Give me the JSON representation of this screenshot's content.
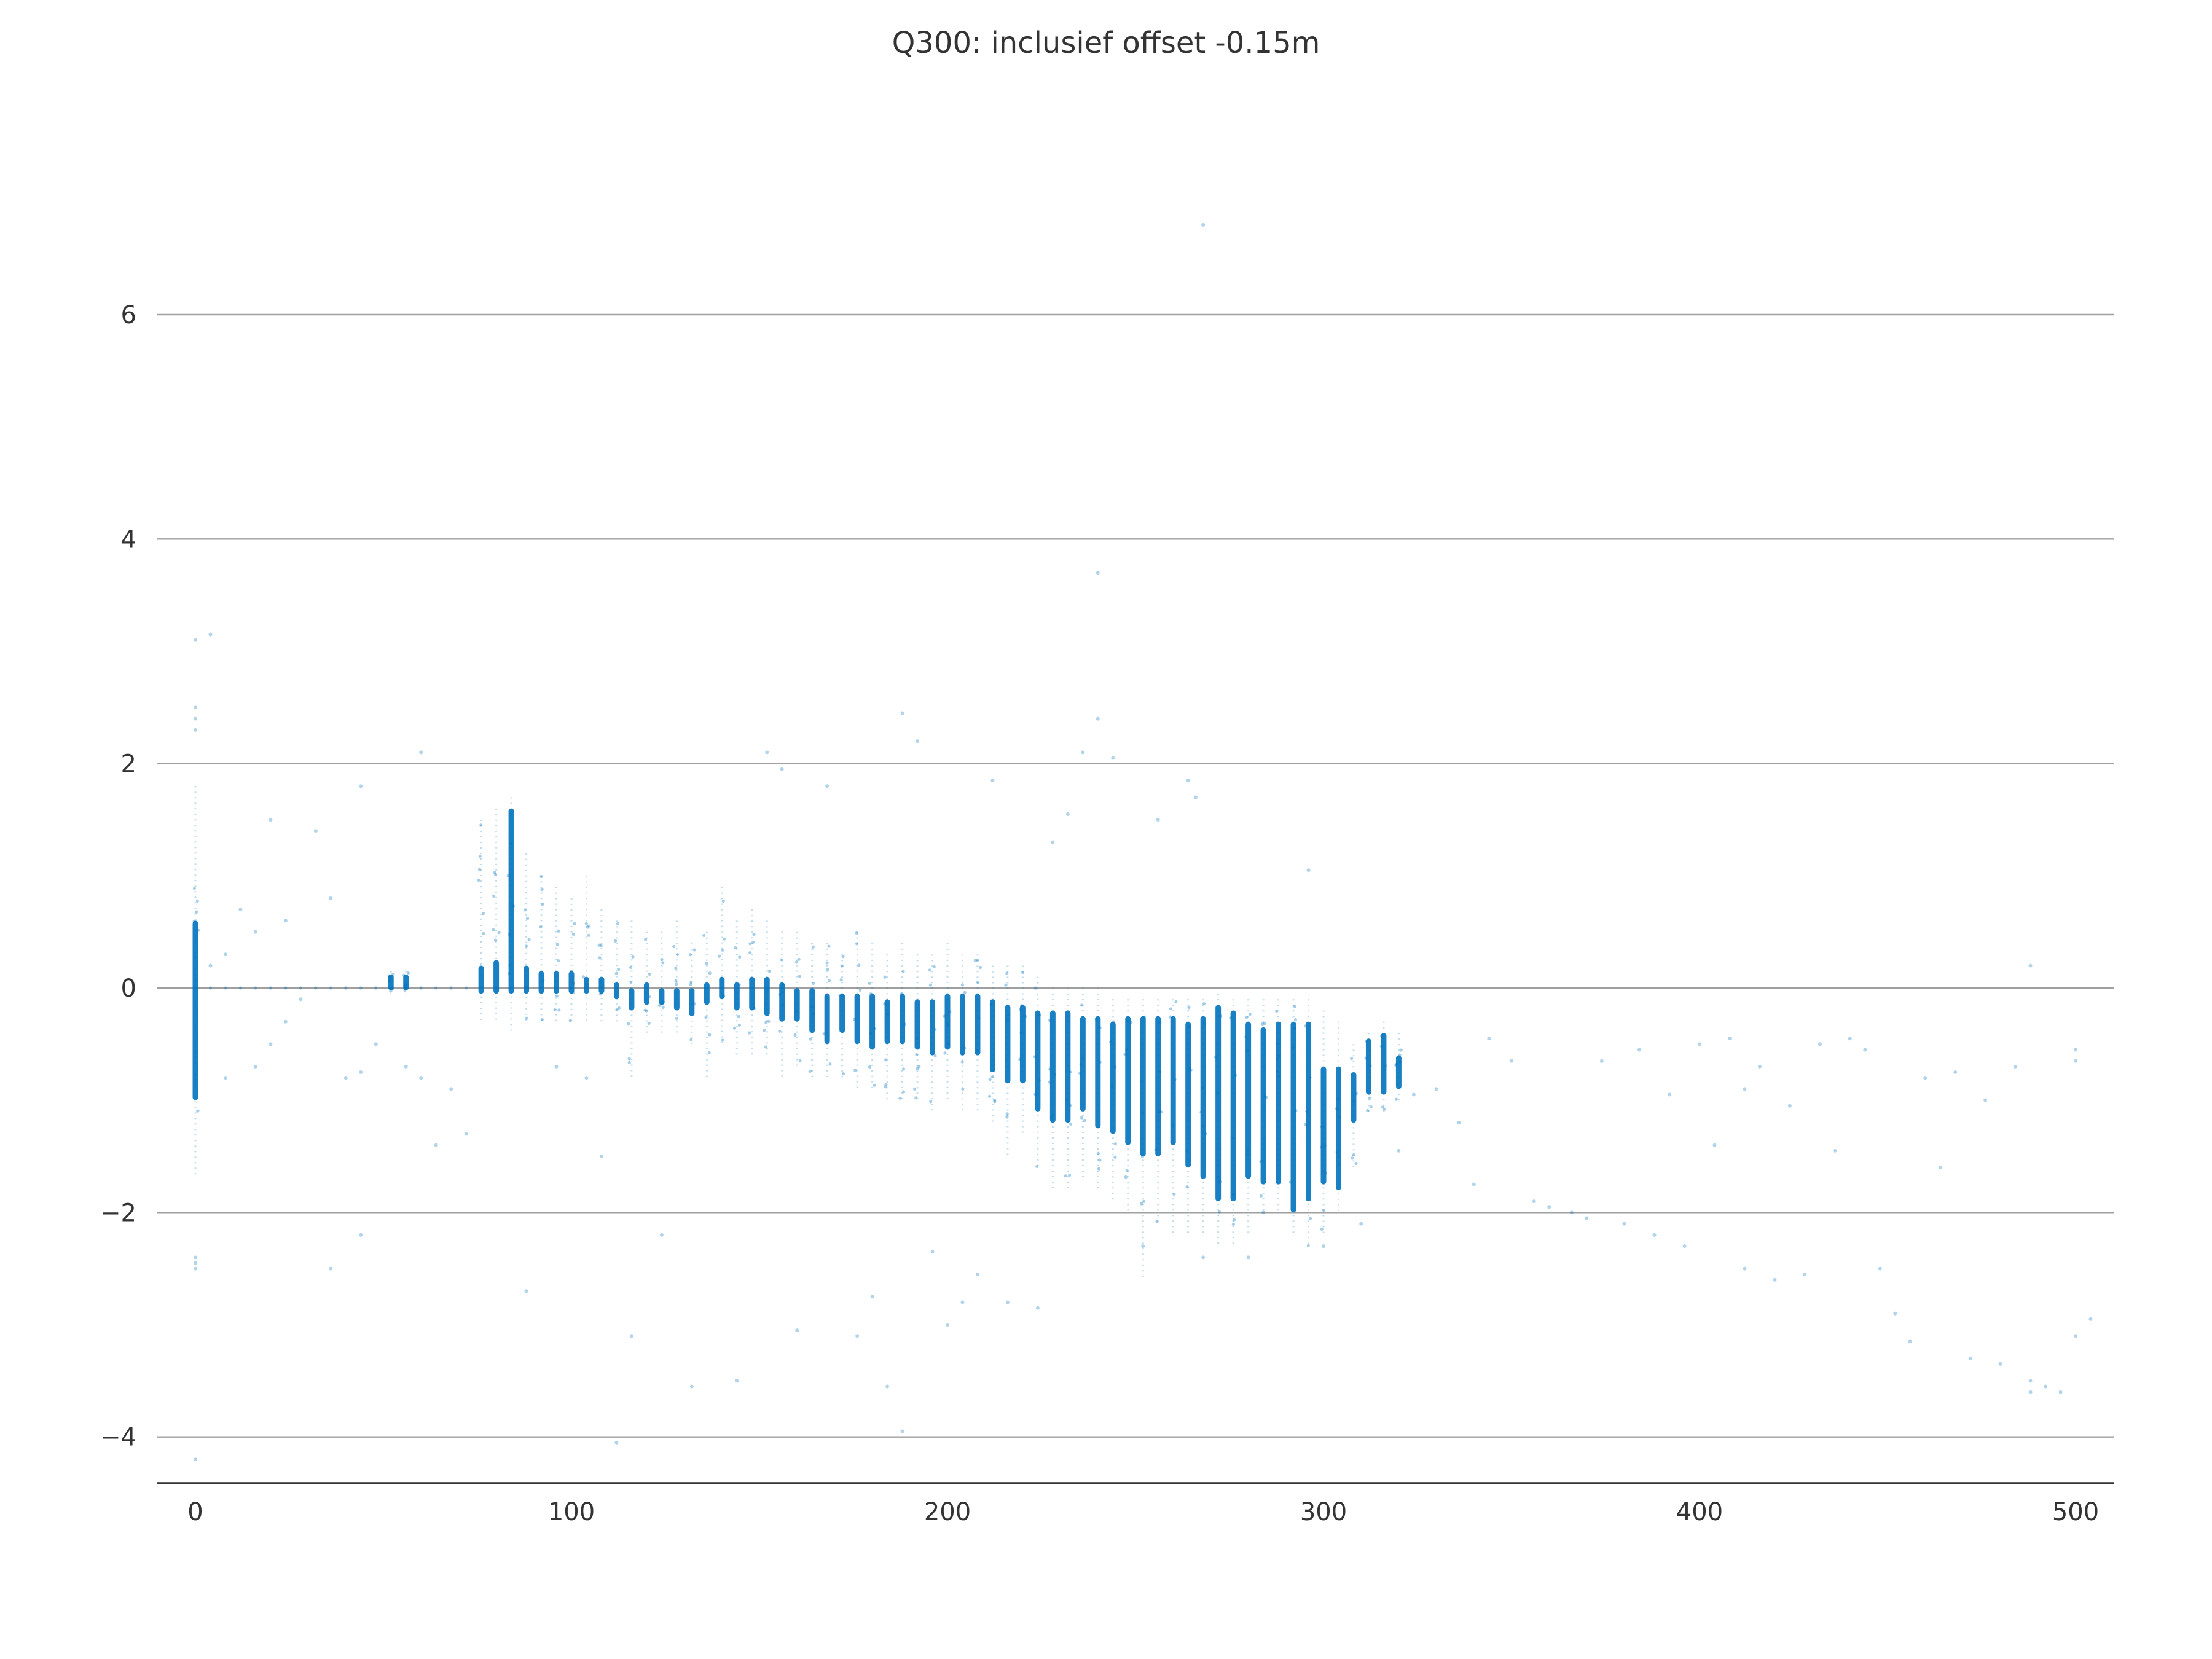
{
  "chart_data": {
    "type": "scatter",
    "title": "Q300: inclusief offset -0.15m",
    "xlabel": "",
    "ylabel": "",
    "xlim": [
      -10,
      510
    ],
    "ylim": [
      -4.4,
      6.8
    ],
    "grid": "horizontal",
    "color": "#0072bd",
    "xticks": [
      0,
      100,
      200,
      300,
      400,
      500
    ],
    "xtick_labels": [
      "0",
      "100",
      "200",
      "300",
      "400",
      "500"
    ],
    "yticks": [
      -4,
      -2,
      0,
      2,
      4,
      6
    ],
    "ytick_labels": [
      "−4",
      "−2",
      "0",
      "2",
      "4",
      "6"
    ],
    "dense_columns": [
      {
        "x": 0,
        "ymin": -1.7,
        "ymax": 1.8,
        "core_min": -1.0,
        "core_max": 0.6
      },
      {
        "x": 52,
        "ymin": -0.05,
        "ymax": 0.15,
        "core_min": -0.02,
        "core_max": 0.12
      },
      {
        "x": 56,
        "ymin": -0.05,
        "ymax": 0.15,
        "core_min": -0.02,
        "core_max": 0.12
      },
      {
        "x": 76,
        "ymin": -0.3,
        "ymax": 1.5,
        "core_min": -0.05,
        "core_max": 0.2
      },
      {
        "x": 80,
        "ymin": -0.3,
        "ymax": 1.6,
        "core_min": -0.05,
        "core_max": 0.25
      },
      {
        "x": 84,
        "ymin": -0.4,
        "ymax": 1.7,
        "core_min": -0.05,
        "core_max": 1.6
      },
      {
        "x": 88,
        "ymin": -0.3,
        "ymax": 1.2,
        "core_min": -0.05,
        "core_max": 0.2
      },
      {
        "x": 92,
        "ymin": -0.3,
        "ymax": 1.0,
        "core_min": -0.05,
        "core_max": 0.15
      },
      {
        "x": 96,
        "ymin": -0.3,
        "ymax": 0.9,
        "core_min": -0.05,
        "core_max": 0.15
      },
      {
        "x": 100,
        "ymin": -0.3,
        "ymax": 0.8,
        "core_min": -0.05,
        "core_max": 0.15
      },
      {
        "x": 104,
        "ymin": -0.3,
        "ymax": 1.0,
        "core_min": -0.05,
        "core_max": 0.1
      },
      {
        "x": 108,
        "ymin": -0.3,
        "ymax": 0.7,
        "core_min": -0.05,
        "core_max": 0.1
      },
      {
        "x": 112,
        "ymin": -0.3,
        "ymax": 0.6,
        "core_min": -0.1,
        "core_max": 0.05
      },
      {
        "x": 116,
        "ymin": -0.8,
        "ymax": 0.6,
        "core_min": -0.2,
        "core_max": 0.0
      },
      {
        "x": 120,
        "ymin": -0.4,
        "ymax": 0.5,
        "core_min": -0.15,
        "core_max": 0.05
      },
      {
        "x": 124,
        "ymin": -0.4,
        "ymax": 0.5,
        "core_min": -0.15,
        "core_max": 0.0
      },
      {
        "x": 128,
        "ymin": -0.4,
        "ymax": 0.6,
        "core_min": -0.2,
        "core_max": 0.0
      },
      {
        "x": 132,
        "ymin": -0.5,
        "ymax": 0.4,
        "core_min": -0.25,
        "core_max": 0.0
      },
      {
        "x": 136,
        "ymin": -0.8,
        "ymax": 0.5,
        "core_min": -0.15,
        "core_max": 0.05
      },
      {
        "x": 140,
        "ymin": -0.5,
        "ymax": 0.9,
        "core_min": -0.1,
        "core_max": 0.1
      },
      {
        "x": 144,
        "ymin": -0.6,
        "ymax": 0.6,
        "core_min": -0.2,
        "core_max": 0.05
      },
      {
        "x": 148,
        "ymin": -0.6,
        "ymax": 0.7,
        "core_min": -0.2,
        "core_max": 0.1
      },
      {
        "x": 152,
        "ymin": -0.6,
        "ymax": 0.6,
        "core_min": -0.25,
        "core_max": 0.1
      },
      {
        "x": 156,
        "ymin": -0.8,
        "ymax": 0.5,
        "core_min": -0.3,
        "core_max": 0.05
      },
      {
        "x": 160,
        "ymin": -0.7,
        "ymax": 0.5,
        "core_min": -0.3,
        "core_max": 0.0
      },
      {
        "x": 164,
        "ymin": -0.8,
        "ymax": 0.4,
        "core_min": -0.4,
        "core_max": 0.0
      },
      {
        "x": 168,
        "ymin": -0.8,
        "ymax": 0.4,
        "core_min": -0.5,
        "core_max": -0.05
      },
      {
        "x": 172,
        "ymin": -0.8,
        "ymax": 0.3,
        "core_min": -0.4,
        "core_max": -0.05
      },
      {
        "x": 176,
        "ymin": -0.9,
        "ymax": 0.5,
        "core_min": -0.5,
        "core_max": -0.05
      },
      {
        "x": 180,
        "ymin": -0.9,
        "ymax": 0.4,
        "core_min": -0.55,
        "core_max": -0.05
      },
      {
        "x": 184,
        "ymin": -1.0,
        "ymax": 0.3,
        "core_min": -0.5,
        "core_max": -0.1
      },
      {
        "x": 188,
        "ymin": -1.0,
        "ymax": 0.4,
        "core_min": -0.5,
        "core_max": -0.05
      },
      {
        "x": 192,
        "ymin": -1.0,
        "ymax": 0.3,
        "core_min": -0.55,
        "core_max": -0.1
      },
      {
        "x": 196,
        "ymin": -1.1,
        "ymax": 0.3,
        "core_min": -0.6,
        "core_max": -0.1
      },
      {
        "x": 200,
        "ymin": -1.0,
        "ymax": 0.4,
        "core_min": -0.55,
        "core_max": -0.05
      },
      {
        "x": 204,
        "ymin": -1.1,
        "ymax": 0.3,
        "core_min": -0.6,
        "core_max": -0.05
      },
      {
        "x": 208,
        "ymin": -1.1,
        "ymax": 0.3,
        "core_min": -0.6,
        "core_max": -0.05
      },
      {
        "x": 212,
        "ymin": -1.2,
        "ymax": 0.2,
        "core_min": -0.75,
        "core_max": -0.1
      },
      {
        "x": 216,
        "ymin": -1.5,
        "ymax": 0.2,
        "core_min": -0.85,
        "core_max": -0.15
      },
      {
        "x": 220,
        "ymin": -1.3,
        "ymax": 0.2,
        "core_min": -0.85,
        "core_max": -0.15
      },
      {
        "x": 224,
        "ymin": -1.6,
        "ymax": 0.1,
        "core_min": -1.1,
        "core_max": -0.2
      },
      {
        "x": 228,
        "ymin": -1.8,
        "ymax": 0.0,
        "core_min": -1.2,
        "core_max": -0.2
      },
      {
        "x": 232,
        "ymin": -1.8,
        "ymax": 0.0,
        "core_min": -1.2,
        "core_max": -0.2
      },
      {
        "x": 236,
        "ymin": -1.7,
        "ymax": 0.0,
        "core_min": -1.1,
        "core_max": -0.25
      },
      {
        "x": 240,
        "ymin": -1.8,
        "ymax": 0.0,
        "core_min": -1.25,
        "core_max": -0.25
      },
      {
        "x": 244,
        "ymin": -1.9,
        "ymax": -0.1,
        "core_min": -1.3,
        "core_max": -0.3
      },
      {
        "x": 248,
        "ymin": -2.0,
        "ymax": -0.1,
        "core_min": -1.4,
        "core_max": -0.25
      },
      {
        "x": 252,
        "ymin": -2.6,
        "ymax": -0.1,
        "core_min": -1.5,
        "core_max": -0.25
      },
      {
        "x": 256,
        "ymin": -2.1,
        "ymax": -0.1,
        "core_min": -1.5,
        "core_max": -0.25
      },
      {
        "x": 260,
        "ymin": -2.2,
        "ymax": -0.1,
        "core_min": -1.4,
        "core_max": -0.25
      },
      {
        "x": 264,
        "ymin": -2.2,
        "ymax": -0.1,
        "core_min": -1.6,
        "core_max": -0.3
      },
      {
        "x": 268,
        "ymin": -2.2,
        "ymax": -0.1,
        "core_min": -1.7,
        "core_max": -0.25
      },
      {
        "x": 272,
        "ymin": -2.3,
        "ymax": -0.05,
        "core_min": -1.9,
        "core_max": -0.15
      },
      {
        "x": 276,
        "ymin": -2.3,
        "ymax": -0.1,
        "core_min": -1.9,
        "core_max": -0.2
      },
      {
        "x": 280,
        "ymin": -2.2,
        "ymax": -0.1,
        "core_min": -1.7,
        "core_max": -0.3
      },
      {
        "x": 284,
        "ymin": -2.0,
        "ymax": -0.1,
        "core_min": -1.75,
        "core_max": -0.35
      },
      {
        "x": 288,
        "ymin": -2.0,
        "ymax": -0.1,
        "core_min": -1.75,
        "core_max": -0.3
      },
      {
        "x": 292,
        "ymin": -2.2,
        "ymax": -0.1,
        "core_min": -2.0,
        "core_max": -0.3
      },
      {
        "x": 296,
        "ymin": -2.3,
        "ymax": -0.1,
        "core_min": -1.9,
        "core_max": -0.3
      },
      {
        "x": 300,
        "ymin": -2.2,
        "ymax": -0.2,
        "core_min": -1.75,
        "core_max": -0.7
      },
      {
        "x": 304,
        "ymin": -2.0,
        "ymax": -0.3,
        "core_min": -1.8,
        "core_max": -0.7
      },
      {
        "x": 308,
        "ymin": -1.6,
        "ymax": -0.5,
        "core_min": -1.2,
        "core_max": -0.75
      },
      {
        "x": 312,
        "ymin": -1.1,
        "ymax": -0.4,
        "core_min": -0.95,
        "core_max": -0.45
      },
      {
        "x": 316,
        "ymin": -1.1,
        "ymax": -0.3,
        "core_min": -0.95,
        "core_max": -0.4
      },
      {
        "x": 320,
        "ymin": -1.0,
        "ymax": -0.4,
        "core_min": -0.9,
        "core_max": -0.6
      }
    ],
    "sparse_points": [
      [
        0,
        3.1
      ],
      [
        4,
        3.15
      ],
      [
        0,
        2.5
      ],
      [
        0,
        2.4
      ],
      [
        0,
        2.3
      ],
      [
        0,
        -2.4
      ],
      [
        0,
        -2.45
      ],
      [
        0,
        -2.5
      ],
      [
        0,
        -4.2
      ],
      [
        4,
        0.2
      ],
      [
        8,
        0.3
      ],
      [
        12,
        0.7
      ],
      [
        16,
        0.5
      ],
      [
        20,
        1.5
      ],
      [
        24,
        0.6
      ],
      [
        28,
        -0.1
      ],
      [
        32,
        1.4
      ],
      [
        36,
        0.8
      ],
      [
        40,
        -0.8
      ],
      [
        44,
        1.8
      ],
      [
        8,
        -0.8
      ],
      [
        16,
        -0.7
      ],
      [
        20,
        -0.5
      ],
      [
        24,
        -0.3
      ],
      [
        36,
        -2.5
      ],
      [
        44,
        -2.2
      ],
      [
        48,
        -0.5
      ],
      [
        60,
        2.1
      ],
      [
        64,
        -1.4
      ],
      [
        68,
        -0.9
      ],
      [
        72,
        -1.3
      ],
      [
        60,
        -0.8
      ],
      [
        56,
        -0.7
      ],
      [
        44,
        -0.75
      ],
      [
        88,
        -2.7
      ],
      [
        96,
        -0.7
      ],
      [
        104,
        -0.8
      ],
      [
        108,
        -1.5
      ],
      [
        112,
        -4.05
      ],
      [
        116,
        -3.1
      ],
      [
        124,
        -2.2
      ],
      [
        132,
        -3.55
      ],
      [
        144,
        -3.5
      ],
      [
        152,
        2.1
      ],
      [
        156,
        1.95
      ],
      [
        160,
        -3.05
      ],
      [
        168,
        1.8
      ],
      [
        176,
        -3.1
      ],
      [
        180,
        -2.75
      ],
      [
        184,
        -3.55
      ],
      [
        188,
        -3.95
      ],
      [
        188,
        2.45
      ],
      [
        192,
        2.2
      ],
      [
        196,
        -2.35
      ],
      [
        200,
        -3.0
      ],
      [
        204,
        -2.8
      ],
      [
        208,
        -2.55
      ],
      [
        212,
        1.85
      ],
      [
        216,
        -2.8
      ],
      [
        224,
        -2.85
      ],
      [
        228,
        1.3
      ],
      [
        232,
        1.55
      ],
      [
        236,
        2.1
      ],
      [
        240,
        3.7
      ],
      [
        240,
        2.4
      ],
      [
        244,
        2.05
      ],
      [
        252,
        -2.3
      ],
      [
        256,
        1.5
      ],
      [
        264,
        1.85
      ],
      [
        266,
        1.7
      ],
      [
        268,
        -2.4
      ],
      [
        268,
        6.8
      ],
      [
        280,
        -2.4
      ],
      [
        284,
        -2.0
      ],
      [
        296,
        1.05
      ],
      [
        300,
        -2.3
      ],
      [
        310,
        -2.1
      ],
      [
        320,
        -1.45
      ],
      [
        324,
        -0.95
      ],
      [
        330,
        -0.9
      ],
      [
        336,
        -1.2
      ],
      [
        340,
        -1.75
      ],
      [
        344,
        -0.45
      ],
      [
        350,
        -0.65
      ],
      [
        356,
        -1.9
      ],
      [
        360,
        -1.95
      ],
      [
        366,
        -2.0
      ],
      [
        370,
        -2.05
      ],
      [
        374,
        -0.65
      ],
      [
        380,
        -2.1
      ],
      [
        384,
        -0.55
      ],
      [
        388,
        -2.2
      ],
      [
        392,
        -0.95
      ],
      [
        396,
        -2.3
      ],
      [
        400,
        -0.5
      ],
      [
        404,
        -1.4
      ],
      [
        408,
        -0.45
      ],
      [
        412,
        -0.9
      ],
      [
        412,
        -2.5
      ],
      [
        416,
        -0.7
      ],
      [
        420,
        -2.6
      ],
      [
        424,
        -1.05
      ],
      [
        428,
        -2.55
      ],
      [
        432,
        -0.5
      ],
      [
        436,
        -1.45
      ],
      [
        440,
        -0.45
      ],
      [
        444,
        -0.55
      ],
      [
        448,
        -2.5
      ],
      [
        452,
        -2.9
      ],
      [
        456,
        -3.15
      ],
      [
        460,
        -0.8
      ],
      [
        464,
        -1.6
      ],
      [
        468,
        -0.75
      ],
      [
        472,
        -3.3
      ],
      [
        476,
        -1.0
      ],
      [
        480,
        -3.35
      ],
      [
        484,
        -0.7
      ],
      [
        488,
        -3.5
      ],
      [
        488,
        -3.6
      ],
      [
        488,
        0.2
      ],
      [
        492,
        -3.55
      ],
      [
        496,
        -3.6
      ],
      [
        500,
        -0.55
      ],
      [
        500,
        -3.1
      ],
      [
        500,
        -0.65
      ],
      [
        504,
        -2.95
      ]
    ]
  }
}
